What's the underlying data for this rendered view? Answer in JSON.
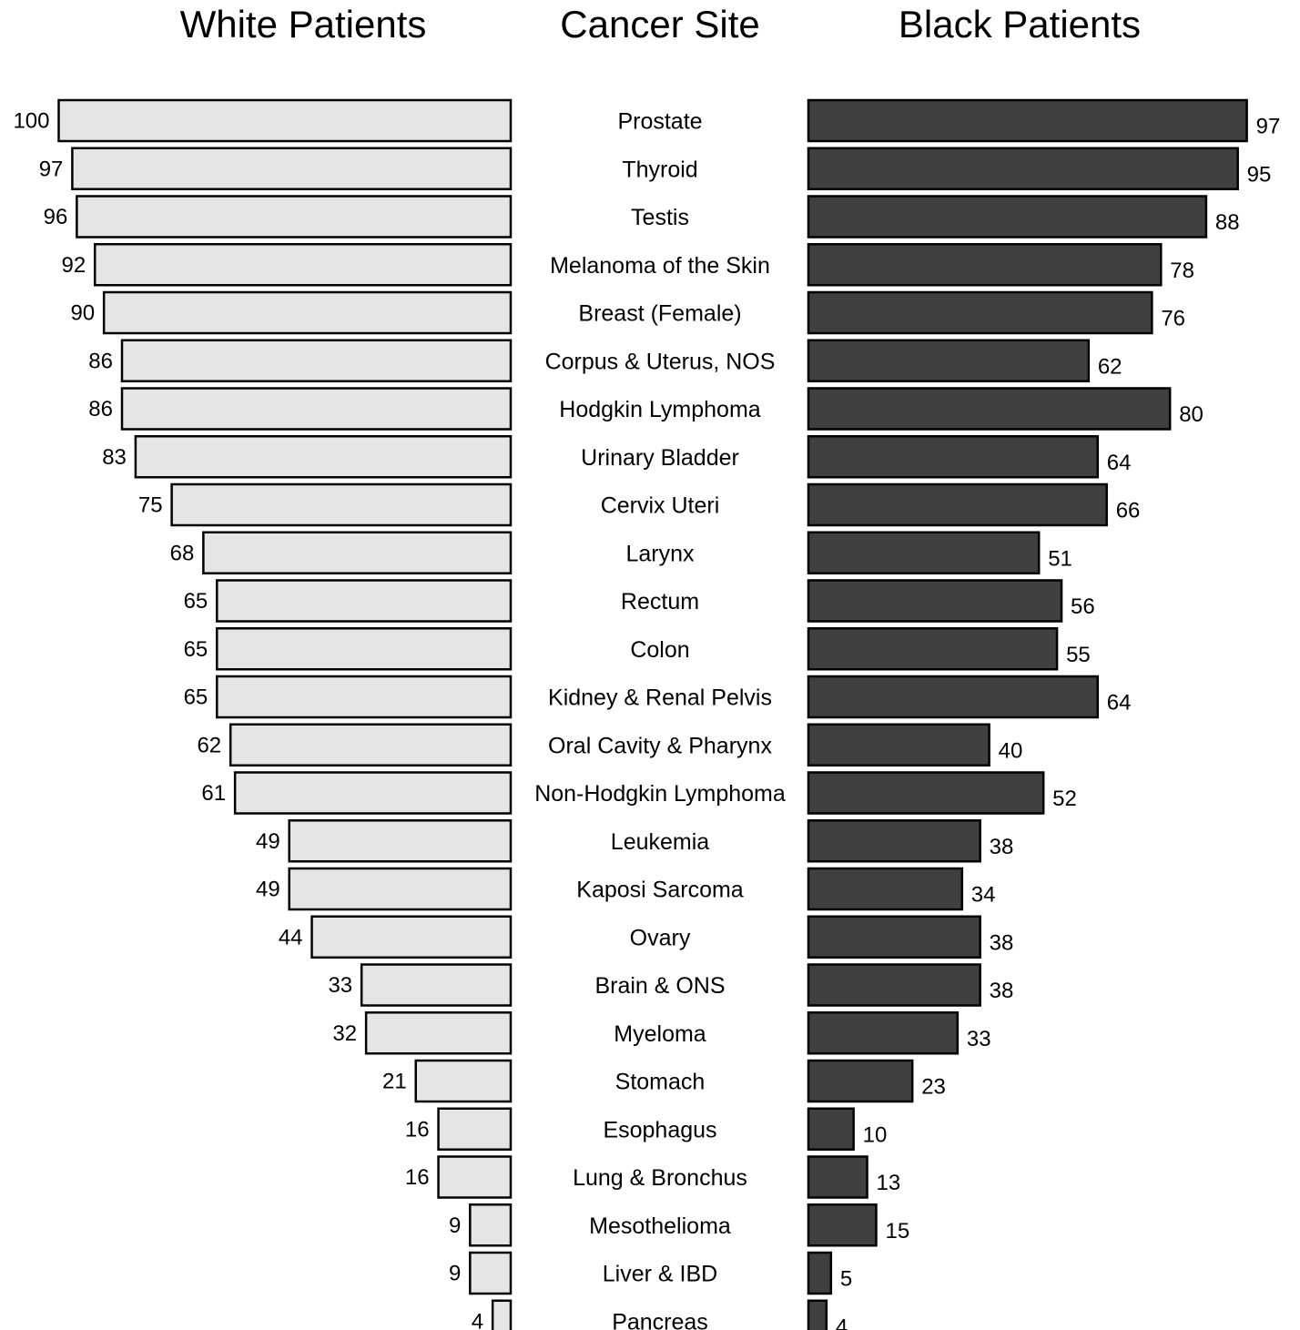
{
  "chart_data": {
    "type": "bar",
    "orientation": "horizontal-diverging",
    "headers": {
      "left": "White Patients",
      "center": "Cancer Site",
      "right": "Black Patients"
    },
    "categories": [
      "Prostate",
      "Thyroid",
      "Testis",
      "Melanoma of the Skin",
      "Breast (Female)",
      "Corpus & Uterus, NOS",
      "Hodgkin Lymphoma",
      "Urinary Bladder",
      "Cervix Uteri",
      "Larynx",
      "Rectum",
      "Colon",
      "Kidney & Renal Pelvis",
      "Oral Cavity & Pharynx",
      "Non-Hodgkin Lymphoma",
      "Leukemia",
      "Kaposi Sarcoma",
      "Ovary",
      "Brain & ONS",
      "Myeloma",
      "Stomach",
      "Esophagus",
      "Lung & Bronchus",
      "Mesothelioma",
      "Liver & IBD",
      "Pancreas"
    ],
    "series": [
      {
        "name": "White Patients",
        "color": "#e5e5e5",
        "values": [
          100,
          97,
          96,
          92,
          90,
          86,
          86,
          83,
          75,
          68,
          65,
          65,
          65,
          62,
          61,
          49,
          49,
          44,
          33,
          32,
          21,
          16,
          16,
          9,
          9,
          4
        ]
      },
      {
        "name": "Black Patients",
        "color": "#404040",
        "values": [
          97,
          95,
          88,
          78,
          76,
          62,
          80,
          64,
          66,
          51,
          56,
          55,
          64,
          40,
          52,
          38,
          34,
          38,
          38,
          33,
          23,
          10,
          13,
          15,
          5,
          4
        ]
      }
    ],
    "xlim": [
      0,
      100
    ],
    "grid": false,
    "legend": "none"
  }
}
